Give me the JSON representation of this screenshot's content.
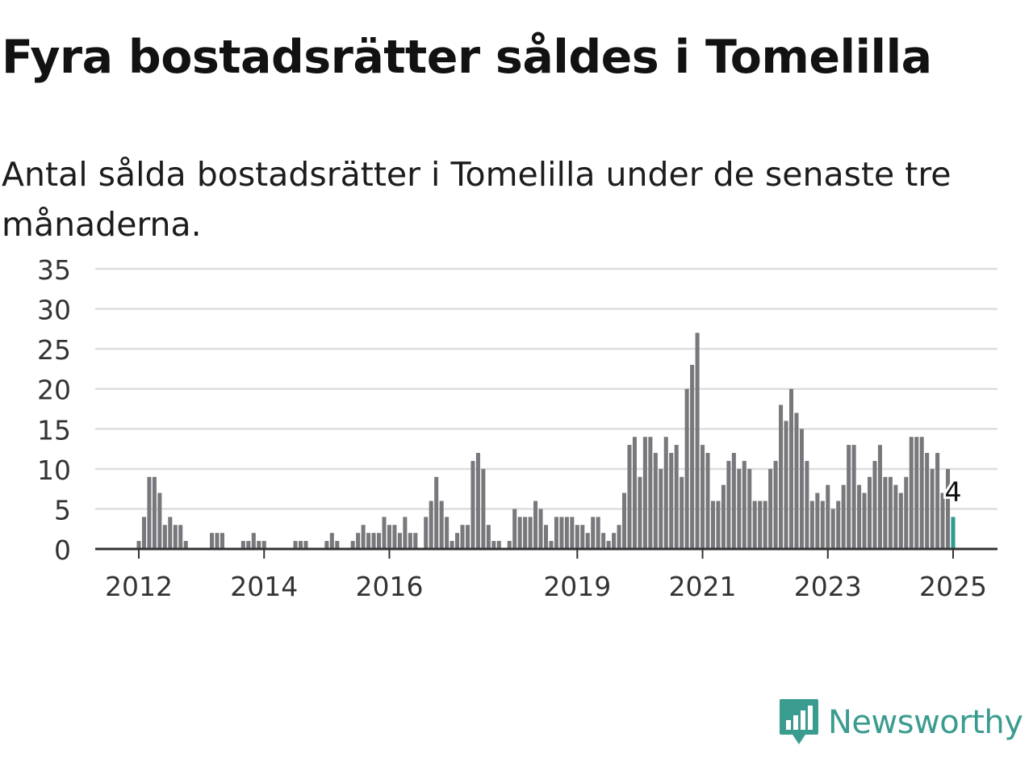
{
  "title": "Fyra bostadsrätter såldes i Tomelilla",
  "subtitle": "Antal sålda bostadsrätter i Tomelilla under de senaste tre månaderna.",
  "brand": {
    "name": "Newsworthy",
    "color": "#3a9c8f",
    "icon": "newsworthy-logo-icon"
  },
  "colors": {
    "bar": "#78777c",
    "highlight": "#2a9d8f",
    "grid": "#dedede",
    "axis": "#333333"
  },
  "chart_data": {
    "type": "bar",
    "x_start": "2012-01",
    "x_end": "2025-01",
    "x_tick_labels": [
      "2012",
      "2014",
      "2016",
      "2019",
      "2021",
      "2023",
      "2025"
    ],
    "y_ticks": [
      0,
      5,
      10,
      15,
      20,
      25,
      30,
      35
    ],
    "ylim": [
      0,
      35
    ],
    "grid": true,
    "highlight_label": "4",
    "values": [
      1,
      4,
      9,
      9,
      7,
      3,
      4,
      3,
      3,
      1,
      0,
      0,
      0,
      0,
      2,
      2,
      2,
      0,
      0,
      0,
      1,
      1,
      2,
      1,
      1,
      0,
      0,
      0,
      0,
      0,
      1,
      1,
      1,
      0,
      0,
      0,
      1,
      2,
      1,
      0,
      0,
      1,
      2,
      3,
      2,
      2,
      2,
      4,
      3,
      3,
      2,
      4,
      2,
      2,
      0,
      4,
      6,
      9,
      6,
      4,
      1,
      2,
      3,
      3,
      11,
      12,
      10,
      3,
      1,
      1,
      0,
      1,
      5,
      4,
      4,
      4,
      6,
      5,
      3,
      1,
      4,
      4,
      4,
      4,
      3,
      3,
      2,
      4,
      4,
      2,
      1,
      2,
      3,
      7,
      13,
      14,
      9,
      14,
      14,
      12,
      10,
      14,
      12,
      13,
      9,
      20,
      23,
      27,
      13,
      12,
      6,
      6,
      8,
      11,
      12,
      10,
      11,
      10,
      6,
      6,
      6,
      10,
      11,
      18,
      16,
      20,
      17,
      15,
      11,
      6,
      7,
      6,
      8,
      5,
      6,
      8,
      13,
      13,
      8,
      7,
      9,
      11,
      13,
      9,
      9,
      8,
      7,
      9,
      14,
      14,
      14,
      12,
      10,
      12,
      7,
      10,
      4
    ]
  }
}
